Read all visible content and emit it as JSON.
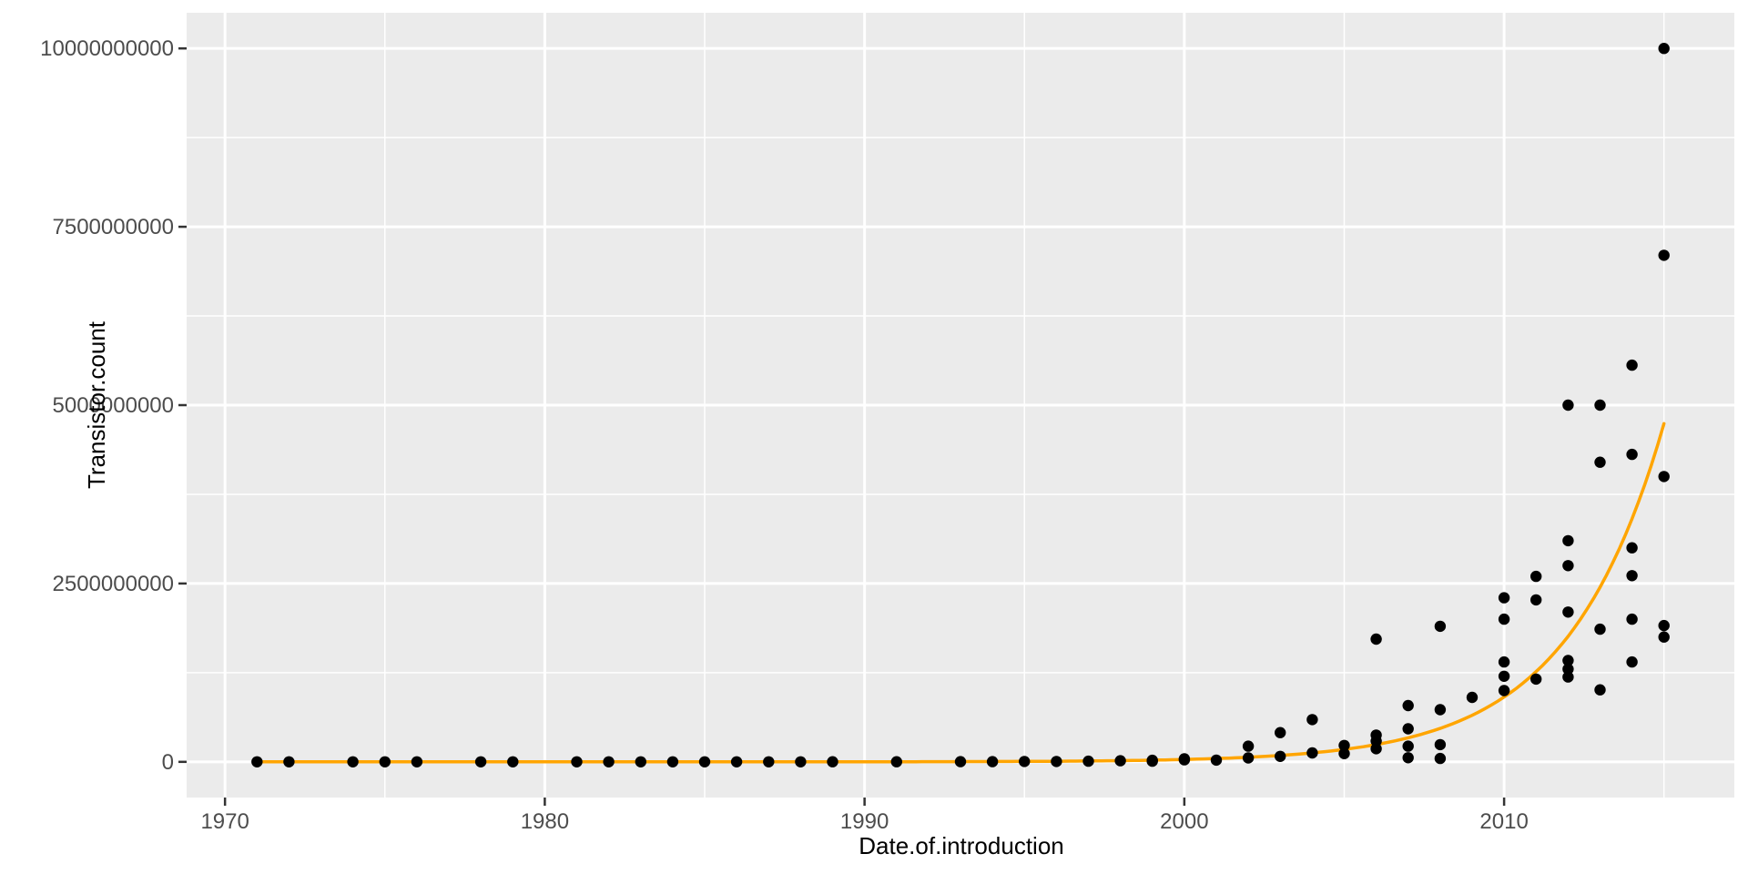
{
  "chart_data": {
    "type": "scatter",
    "title": "",
    "xlabel": "Date.of.introduction",
    "ylabel": "Transistor.count",
    "legend": "none",
    "grid": "on",
    "panel_background": "#EBEBEB",
    "grid_color": "#FFFFFF",
    "point_color": "#000000",
    "trend_color": "#FFA500",
    "tick_text_color": "#4D4D4D",
    "axis_title_color": "#000000",
    "tick_mark_color": "#333333",
    "xlim": [
      1968.8,
      2017.2
    ],
    "ylim": [
      -500000000,
      10500000000
    ],
    "x_ticks": [
      1970,
      1980,
      1990,
      2000,
      2010
    ],
    "x_tick_labels": [
      "1970",
      "1980",
      "1990",
      "2000",
      "2010"
    ],
    "x_minor_ticks": [
      1975,
      1985,
      1995,
      2005,
      2015
    ],
    "y_ticks": [
      0,
      2500000000,
      5000000000,
      7500000000,
      10000000000
    ],
    "y_tick_labels": [
      "0",
      "2500000000",
      "5000000000",
      "7500000000",
      "10000000000"
    ],
    "y_minor_ticks": [
      1250000000,
      3750000000,
      6250000000,
      8750000000
    ],
    "points": [
      [
        1971,
        2300
      ],
      [
        1972,
        3500
      ],
      [
        1974,
        4500
      ],
      [
        1975,
        3510
      ],
      [
        1976,
        8500
      ],
      [
        1978,
        29000
      ],
      [
        1979,
        68000
      ],
      [
        1981,
        45000
      ],
      [
        1982,
        134000
      ],
      [
        1983,
        150000
      ],
      [
        1984,
        190000
      ],
      [
        1985,
        275000
      ],
      [
        1986,
        285000
      ],
      [
        1987,
        273000
      ],
      [
        1988,
        350000
      ],
      [
        1989,
        1180000
      ],
      [
        1991,
        1350000
      ],
      [
        1993,
        3100000
      ],
      [
        1994,
        2500000
      ],
      [
        1995,
        5500000
      ],
      [
        1996,
        5400000
      ],
      [
        1997,
        8800000
      ],
      [
        1998,
        15200000
      ],
      [
        1999,
        9500000
      ],
      [
        1999,
        22000000
      ],
      [
        2000,
        42000000
      ],
      [
        2000,
        28000000
      ],
      [
        2001,
        25000000
      ],
      [
        2002,
        220000000
      ],
      [
        2002,
        55000000
      ],
      [
        2003,
        410000000
      ],
      [
        2003,
        77000000
      ],
      [
        2004,
        592000000
      ],
      [
        2004,
        125000000
      ],
      [
        2005,
        230000000
      ],
      [
        2005,
        115000000
      ],
      [
        2006,
        1720000000
      ],
      [
        2006,
        376000000
      ],
      [
        2006,
        291000000
      ],
      [
        2006,
        184000000
      ],
      [
        2007,
        789000000
      ],
      [
        2007,
        463000000
      ],
      [
        2007,
        220000000
      ],
      [
        2007,
        58000000
      ],
      [
        2008,
        1900000000
      ],
      [
        2008,
        731000000
      ],
      [
        2008,
        242000000
      ],
      [
        2008,
        47000000
      ],
      [
        2009,
        904000000
      ],
      [
        2010,
        2300000000
      ],
      [
        2010,
        2000000000
      ],
      [
        2010,
        1400000000
      ],
      [
        2010,
        1200000000
      ],
      [
        2010,
        1000000000
      ],
      [
        2011,
        2600000000
      ],
      [
        2011,
        2270000000
      ],
      [
        2011,
        1160000000
      ],
      [
        2012,
        5000000000
      ],
      [
        2012,
        3100000000
      ],
      [
        2012,
        2750000000
      ],
      [
        2012,
        2100000000
      ],
      [
        2012,
        1420000000
      ],
      [
        2012,
        1300000000
      ],
      [
        2012,
        1190000000
      ],
      [
        2013,
        5000000000
      ],
      [
        2013,
        4200000000
      ],
      [
        2013,
        1860000000
      ],
      [
        2013,
        1010000000
      ],
      [
        2014,
        5560000000
      ],
      [
        2014,
        4310000000
      ],
      [
        2014,
        3000000000
      ],
      [
        2014,
        2610000000
      ],
      [
        2014,
        2000000000
      ],
      [
        2014,
        1400000000
      ],
      [
        2015,
        10000000000
      ],
      [
        2015,
        7100000000
      ],
      [
        2015,
        4000000000
      ],
      [
        2015,
        1910000000
      ],
      [
        2015,
        1750000000
      ]
    ],
    "trend_curve": {
      "type": "exponential",
      "start_year": 1971,
      "end_year": 2015.1,
      "start_value": 2300,
      "end_value": 4900000000
    }
  }
}
